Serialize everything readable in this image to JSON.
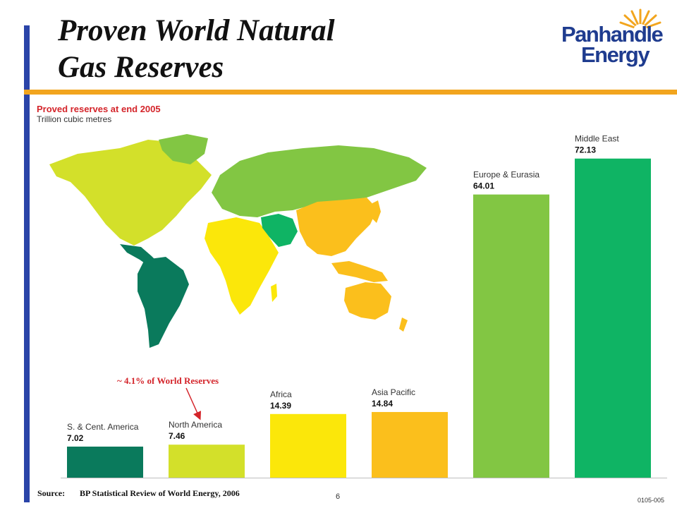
{
  "slide": {
    "title_line1": "Proven World Natural",
    "title_line2": "Gas Reserves",
    "page_number": "6",
    "doc_code": "0105-005"
  },
  "logo": {
    "line1": "Panhandle",
    "line2": "Energy"
  },
  "source": {
    "label": "Source:",
    "text": "BP Statistical Review of World Energy, 2006"
  },
  "annotation": {
    "text": "~ 4.1% of World Reserves",
    "color": "#d4242a"
  },
  "chart_data": {
    "type": "bar",
    "title": "Proved reserves at end 2005",
    "subtitle": "Trillion cubic metres",
    "xlabel": "",
    "ylabel": "",
    "ylim": [
      0,
      80
    ],
    "grid": false,
    "categories": [
      "S. & Cent. America",
      "North America",
      "Africa",
      "Asia Pacific",
      "Europe & Eurasia",
      "Middle East"
    ],
    "values": [
      7.02,
      7.46,
      14.39,
      14.84,
      64.01,
      72.13
    ],
    "value_labels": [
      "7.02",
      "7.46",
      "14.39",
      "14.84",
      "64.01",
      "72.13"
    ],
    "colors": [
      "#0a7a5c",
      "#d3e02a",
      "#fbe70a",
      "#fbbf1c",
      "#82c643",
      "#0fb464"
    ]
  }
}
